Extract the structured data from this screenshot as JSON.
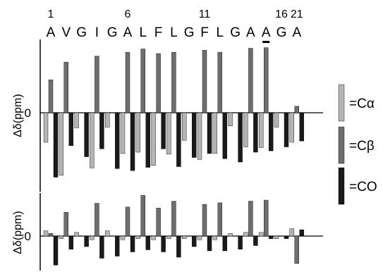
{
  "chart_data": {
    "type": "bar",
    "residue_numbers": [
      {
        "index": 0,
        "label": "1"
      },
      {
        "index": 5,
        "label": "6"
      },
      {
        "index": 10,
        "label": "11"
      },
      {
        "index": 15,
        "label": "16"
      },
      {
        "index": 16,
        "label": "21"
      }
    ],
    "categories": [
      "A",
      "V",
      "G",
      "I",
      "G",
      "A",
      "L",
      "F",
      "L",
      "G",
      "F",
      "L",
      "G",
      "A",
      "A",
      "G",
      "A"
    ],
    "legend": [
      {
        "label": "=Cα",
        "color": "#b4b4b4"
      },
      {
        "label": "=Cβ",
        "color": "#6e6e6e"
      },
      {
        "label": "=CO",
        "color": "#1a1a1a"
      }
    ],
    "panels": [
      {
        "ylabel": "Δδ(ppm)",
        "zero_label": "0",
        "ylim": [
          -1.0,
          1.05
        ],
        "series": [
          {
            "name": "=Cα",
            "values": [
              -0.45,
              -0.95,
              -0.23,
              -0.84,
              -0.22,
              -0.62,
              -0.6,
              -0.8,
              -0.63,
              -0.42,
              -0.71,
              -0.62,
              -0.2,
              -0.52,
              -0.53,
              -0.22,
              -0.45
            ]
          },
          {
            "name": "=Cβ",
            "values": [
              0.5,
              0.77,
              null,
              0.86,
              null,
              0.92,
              0.97,
              0.9,
              0.92,
              null,
              0.95,
              0.92,
              null,
              0.98,
              0.99,
              null,
              0.1
            ]
          },
          {
            "name": "=CO",
            "values": [
              -0.98,
              -0.5,
              -0.67,
              -0.55,
              -0.85,
              -0.88,
              -0.83,
              -0.55,
              -0.82,
              -0.68,
              -0.62,
              -0.7,
              -0.75,
              -0.6,
              -0.58,
              -0.52,
              -0.43
            ]
          }
        ]
      },
      {
        "ylabel": "Δδ(ppm)",
        "zero_label": "0",
        "ylim": [
          -0.6,
          0.8
        ],
        "series": [
          {
            "name": "=Cα",
            "values": [
              0.1,
              -0.05,
              0.07,
              -0.07,
              0.1,
              -0.07,
              -0.05,
              -0.07,
              -0.05,
              -0.05,
              -0.07,
              -0.07,
              0.05,
              0.07,
              0.07,
              -0.05,
              0.14
            ]
          },
          {
            "name": "=Cβ",
            "values": [
              0.05,
              0.45,
              null,
              0.62,
              null,
              0.55,
              0.77,
              0.53,
              0.66,
              null,
              0.6,
              0.63,
              null,
              0.66,
              0.68,
              null,
              -0.52
            ]
          },
          {
            "name": "=CO",
            "values": [
              -0.55,
              -0.25,
              -0.2,
              -0.42,
              -0.38,
              -0.3,
              -0.26,
              -0.3,
              -0.4,
              -0.2,
              -0.28,
              -0.28,
              -0.25,
              -0.18,
              -0.05,
              -0.05,
              0.12
            ]
          }
        ]
      }
    ]
  }
}
